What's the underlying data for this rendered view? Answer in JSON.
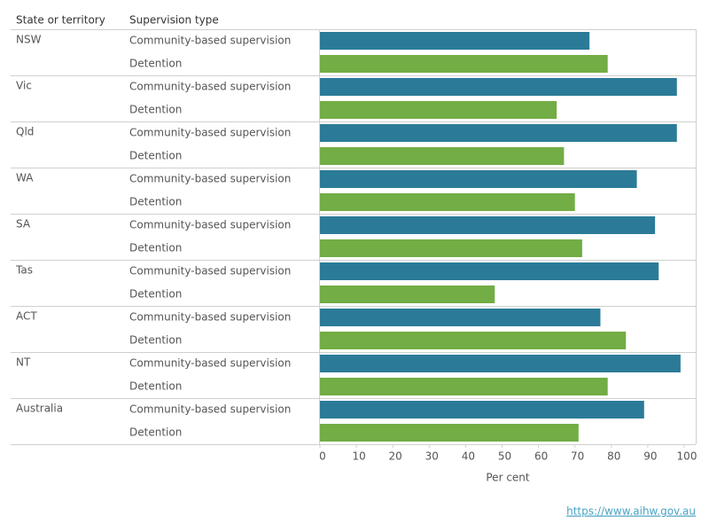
{
  "chart_data": {
    "type": "bar",
    "orientation": "horizontal",
    "column_headers": [
      "State or territory",
      "Supervision type"
    ],
    "categories": [
      "NSW",
      "Vic",
      "Qld",
      "WA",
      "SA",
      "Tas",
      "ACT",
      "NT",
      "Australia"
    ],
    "series": [
      {
        "name": "Community-based supervision",
        "color": "#2b7b98",
        "values": [
          74,
          98,
          98,
          87,
          92,
          93,
          77,
          99,
          89
        ]
      },
      {
        "name": "Detention",
        "color": "#72ad45",
        "values": [
          79,
          65,
          67,
          70,
          72,
          48,
          84,
          79,
          71
        ]
      }
    ],
    "xlabel": "Per cent",
    "xlim": [
      0,
      100
    ],
    "xticks": [
      0,
      10,
      20,
      30,
      40,
      50,
      60,
      70,
      80,
      90,
      100
    ]
  },
  "footer": {
    "link": "https://www.aihw.gov.au"
  }
}
